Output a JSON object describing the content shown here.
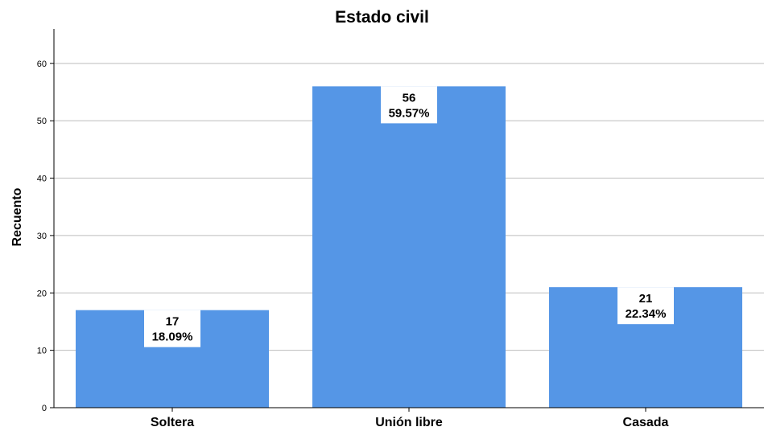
{
  "chart_data": {
    "type": "bar",
    "title": "Estado civil",
    "xlabel": "",
    "ylabel": "Recuento",
    "categories": [
      "Soltera",
      "Unión libre",
      "Casada"
    ],
    "values": [
      17,
      56,
      21
    ],
    "percent_labels": [
      "18.09%",
      "59.57%",
      "22.34%"
    ],
    "ylim": [
      0,
      66
    ],
    "yticks": [
      0,
      10,
      20,
      30,
      40,
      50,
      60
    ],
    "grid": true,
    "bar_color": "#5596e6"
  }
}
